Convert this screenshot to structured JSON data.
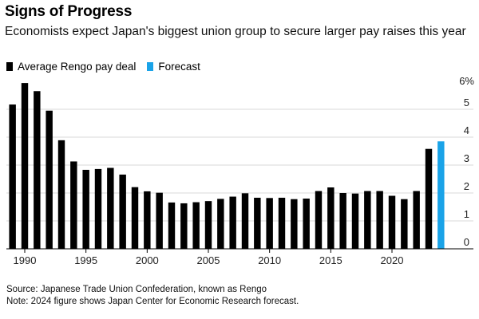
{
  "header": {
    "title": "Signs of Progress",
    "subtitle": "Economists expect Japan's biggest union group to secure larger pay raises this year"
  },
  "legend": {
    "items": [
      {
        "label": "Average Rengo pay deal",
        "color": "#000000"
      },
      {
        "label": "Forecast",
        "color": "#1aa3e8"
      }
    ]
  },
  "footer": {
    "source": "Source: Japanese Trade Union Confederation, known as Rengo",
    "note": "Note: 2024 figure shows Japan Center for Economic Research forecast."
  },
  "chart_data": {
    "type": "bar",
    "x": [
      1989,
      1990,
      1991,
      1992,
      1993,
      1994,
      1995,
      1996,
      1997,
      1998,
      1999,
      2000,
      2001,
      2002,
      2003,
      2004,
      2005,
      2006,
      2007,
      2008,
      2009,
      2010,
      2011,
      2012,
      2013,
      2014,
      2015,
      2016,
      2017,
      2018,
      2019,
      2020,
      2021,
      2022,
      2023,
      2024
    ],
    "series": [
      {
        "name": "Average Rengo pay deal",
        "color": "#000000",
        "values": [
          5.17,
          5.94,
          5.65,
          4.95,
          3.89,
          3.13,
          2.83,
          2.86,
          2.9,
          2.66,
          2.21,
          2.06,
          2.01,
          1.66,
          1.63,
          1.67,
          1.71,
          1.79,
          1.87,
          1.99,
          1.83,
          1.82,
          1.83,
          1.78,
          1.8,
          2.07,
          2.2,
          2.0,
          1.98,
          2.07,
          2.07,
          1.9,
          1.78,
          2.07,
          3.58,
          null
        ]
      },
      {
        "name": "Forecast",
        "color": "#1aa3e8",
        "values": [
          null,
          null,
          null,
          null,
          null,
          null,
          null,
          null,
          null,
          null,
          null,
          null,
          null,
          null,
          null,
          null,
          null,
          null,
          null,
          null,
          null,
          null,
          null,
          null,
          null,
          null,
          null,
          null,
          null,
          null,
          null,
          null,
          null,
          null,
          null,
          3.85
        ]
      }
    ],
    "x_tick_labels": [
      "1990",
      "1995",
      "2000",
      "2005",
      "2010",
      "2015",
      "2020"
    ],
    "y_ticks": [
      0,
      1,
      2,
      3,
      4,
      5
    ],
    "y_tick_labels": [
      "0",
      "1",
      "2",
      "3",
      "4",
      "5"
    ],
    "y_unit_label": "6%",
    "ylim": [
      0,
      6
    ],
    "grid": true,
    "y_axis_position": "right",
    "legend_position": "top-left"
  }
}
